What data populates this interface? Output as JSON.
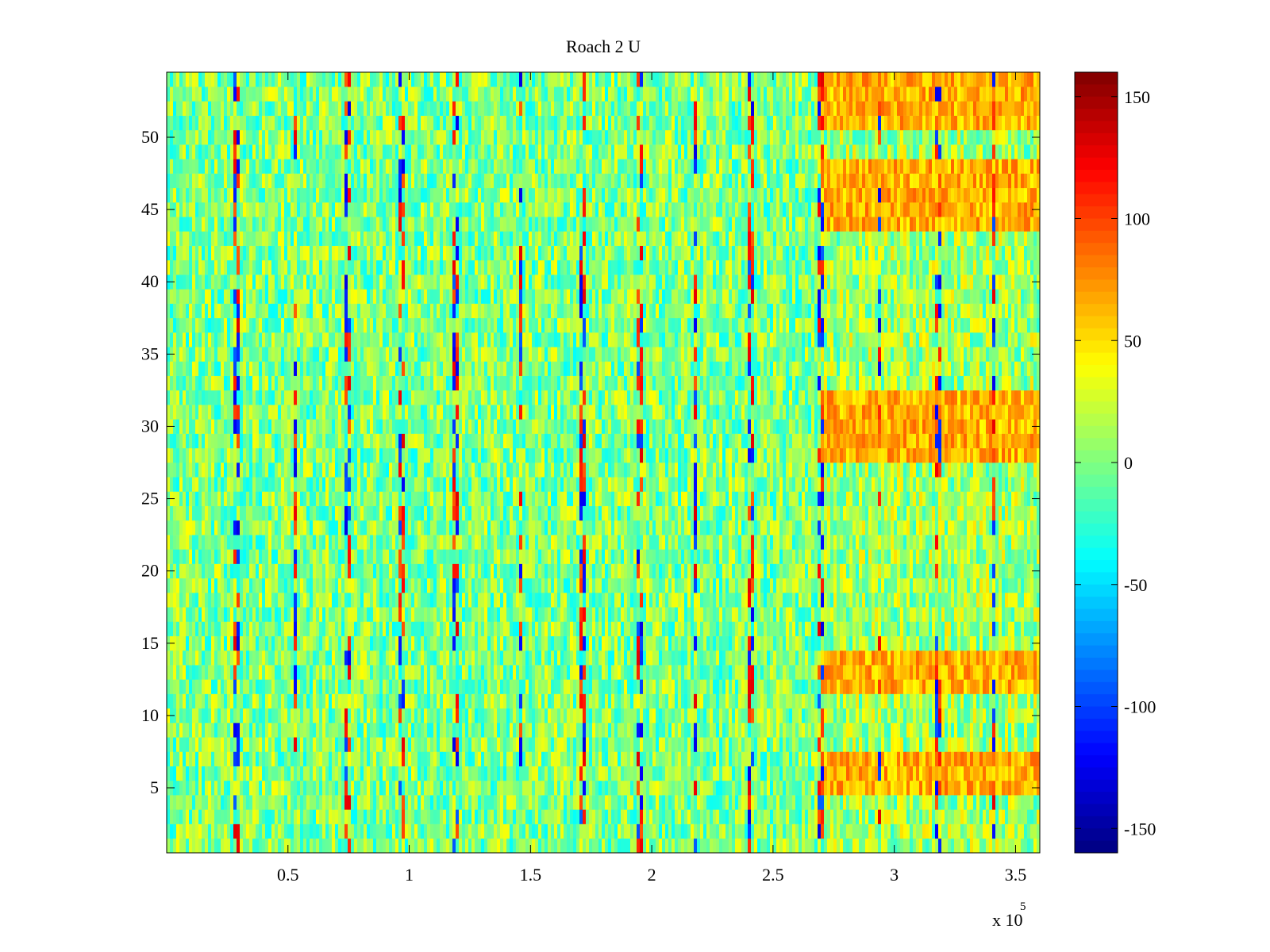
{
  "chart_data": {
    "type": "heatmap",
    "title": "Roach 2 U",
    "xlabel": "",
    "ylabel": "",
    "x_multiplier_label": "x 10",
    "x_multiplier_exponent": "5",
    "xlim": [
      0,
      3.6
    ],
    "ylim": [
      0.5,
      54.5
    ],
    "x_ticks": [
      0.5,
      1,
      1.5,
      2,
      2.5,
      3,
      3.5
    ],
    "x_tick_labels": [
      "0.5",
      "1",
      "1.5",
      "2",
      "2.5",
      "3",
      "3.5"
    ],
    "y_ticks": [
      5,
      10,
      15,
      20,
      25,
      30,
      35,
      40,
      45,
      50
    ],
    "y_tick_labels": [
      "5",
      "10",
      "15",
      "20",
      "25",
      "30",
      "35",
      "40",
      "45",
      "50"
    ],
    "rows": 54,
    "colormap": "jet",
    "clim": [
      -160,
      160
    ],
    "colorbar_ticks": [
      150,
      100,
      50,
      0,
      -50,
      -100,
      -150
    ],
    "colorbar_tick_labels": [
      "150",
      "100",
      "50",
      "0",
      "-50",
      "-100",
      "-150"
    ],
    "typical_value_range": [
      -40,
      40
    ],
    "high_region": {
      "x_start": 2.7,
      "y_ranges": [
        [
          51,
          54
        ],
        [
          28,
          32
        ],
        [
          5,
          7
        ],
        [
          12,
          14
        ],
        [
          44,
          48
        ]
      ],
      "value_range": [
        40,
        90
      ]
    },
    "streak_positions_x": [
      0.29,
      0.53,
      0.75,
      0.97,
      1.19,
      1.46,
      1.71,
      1.95,
      2.18,
      2.41,
      2.7,
      2.94,
      3.18,
      3.41
    ]
  }
}
